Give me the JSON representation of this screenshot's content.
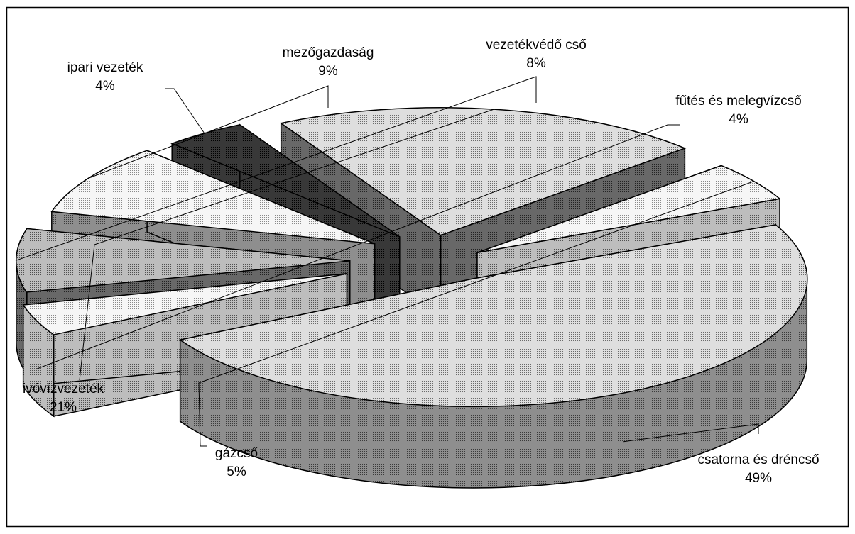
{
  "chart_data": {
    "type": "pie",
    "style": "3d-exploded",
    "title": "",
    "legend": "none",
    "unit": "%",
    "slices": [
      {
        "label": "csatorna  és dréncső",
        "value": 49,
        "value_label": "49%"
      },
      {
        "label": "fűtés és melegvízcső",
        "value": 4,
        "value_label": "4%"
      },
      {
        "label": "vezetékvédő cső",
        "value": 8,
        "value_label": "8%"
      },
      {
        "label": "mezőgazdaság",
        "value": 9,
        "value_label": "9%"
      },
      {
        "label": "ipari vezeték",
        "value": 4,
        "value_label": "4%"
      },
      {
        "label": "ivóvízvezeték",
        "value": 21,
        "value_label": "21%"
      },
      {
        "label": "gázcső",
        "value": 5,
        "value_label": "5%"
      }
    ]
  }
}
